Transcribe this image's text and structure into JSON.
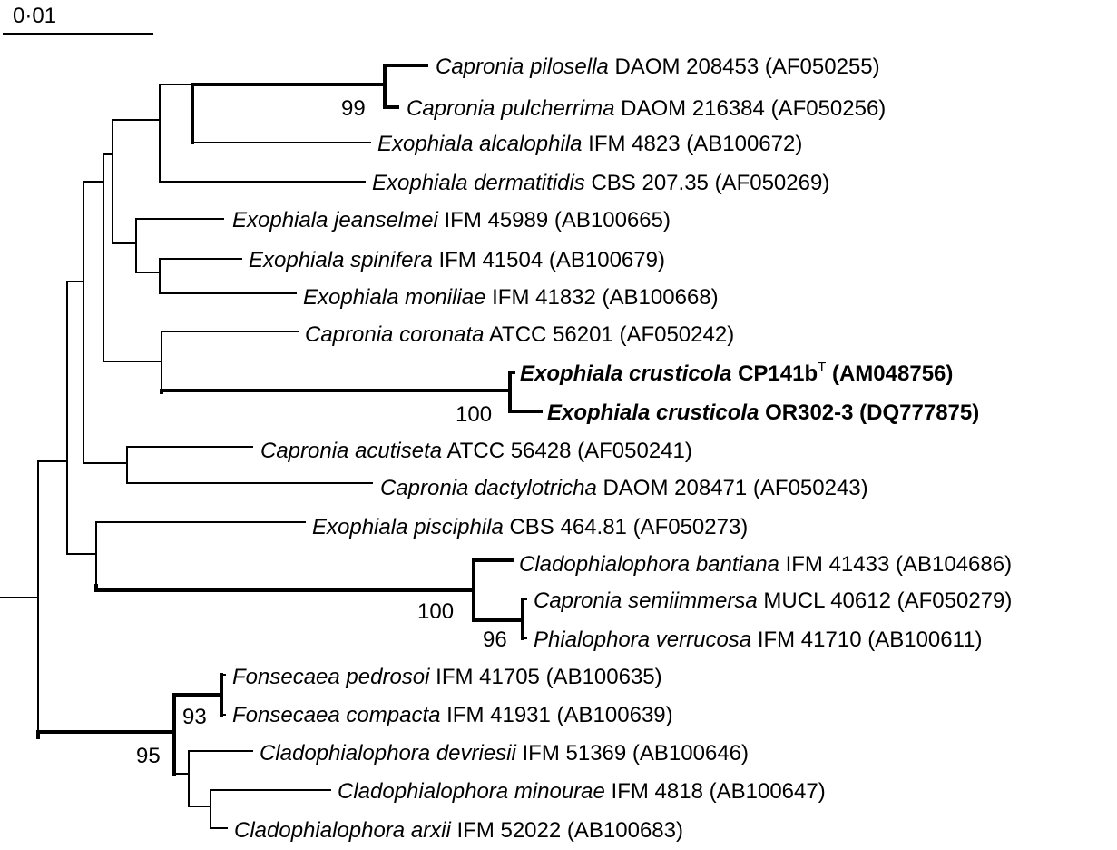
{
  "scale_bar": {
    "label": "0·01"
  },
  "taxa": [
    {
      "genus_species": "Capronia pilosella",
      "strain": "DAOM 208453",
      "accession": "(AF050255)",
      "bold": false
    },
    {
      "genus_species": "Capronia pulcherrima",
      "strain": "DAOM 216384",
      "accession": "(AF050256)",
      "bold": false
    },
    {
      "genus_species": "Exophiala alcalophila",
      "strain": "IFM 4823",
      "accession": "(AB100672)",
      "bold": false
    },
    {
      "genus_species": "Exophiala dermatitidis",
      "strain": "CBS 207.35",
      "accession": "(AF050269)",
      "bold": false
    },
    {
      "genus_species": "Exophiala jeanselmei",
      "strain": "IFM 45989",
      "accession": "(AB100665)",
      "bold": false
    },
    {
      "genus_species": "Exophiala spinifera",
      "strain": "IFM 41504",
      "accession": "(AB100679)",
      "bold": false
    },
    {
      "genus_species": "Exophiala moniliae",
      "strain": "IFM 41832",
      "accession": "(AB100668)",
      "bold": false
    },
    {
      "genus_species": "Capronia coronata",
      "strain": "ATCC 56201",
      "accession": "(AF050242)",
      "bold": false
    },
    {
      "genus_species": "Exophiala crusticola",
      "strain": "CP141b",
      "strain_sup": "T",
      "accession": "(AM048756)",
      "bold": true
    },
    {
      "genus_species": "Exophiala crusticola",
      "strain": "OR302-3",
      "accession": "(DQ777875)",
      "bold": true
    },
    {
      "genus_species": "Capronia acutiseta",
      "strain": "ATCC 56428",
      "accession": "(AF050241)",
      "bold": false
    },
    {
      "genus_species": "Capronia dactylotricha",
      "strain": "DAOM 208471",
      "accession": "(AF050243)",
      "bold": false
    },
    {
      "genus_species": "Exophiala pisciphila",
      "strain": "CBS 464.81",
      "accession": "(AF050273)",
      "bold": false
    },
    {
      "genus_species": "Cladophialophora bantiana",
      "strain": "IFM 41433",
      "accession": "(AB104686)",
      "bold": false
    },
    {
      "genus_species": "Capronia semiimmersa",
      "strain": "MUCL 40612",
      "accession": "(AF050279)",
      "bold": false
    },
    {
      "genus_species": "Phialophora verrucosa",
      "strain": "IFM 41710",
      "accession": "(AB100611)",
      "bold": false
    },
    {
      "genus_species": "Fonsecaea pedrosoi",
      "strain": "IFM 41705",
      "accession": "(AB100635)",
      "bold": false
    },
    {
      "genus_species": "Fonsecaea compacta",
      "strain": "IFM 41931",
      "accession": "(AB100639)",
      "bold": false
    },
    {
      "genus_species": "Cladophialophora devriesii",
      "strain": "IFM 51369",
      "accession": "(AB100646)",
      "bold": false
    },
    {
      "genus_species": "Cladophialophora minourae",
      "strain": "IFM 4818",
      "accession": "(AB100647)",
      "bold": false
    },
    {
      "genus_species": "Cladophialophora arxii",
      "strain": "IFM 52022",
      "accession": "(AB100683)",
      "bold": false
    }
  ],
  "bootstrap": [
    "99",
    "100",
    "100",
    "96",
    "93",
    "95"
  ]
}
